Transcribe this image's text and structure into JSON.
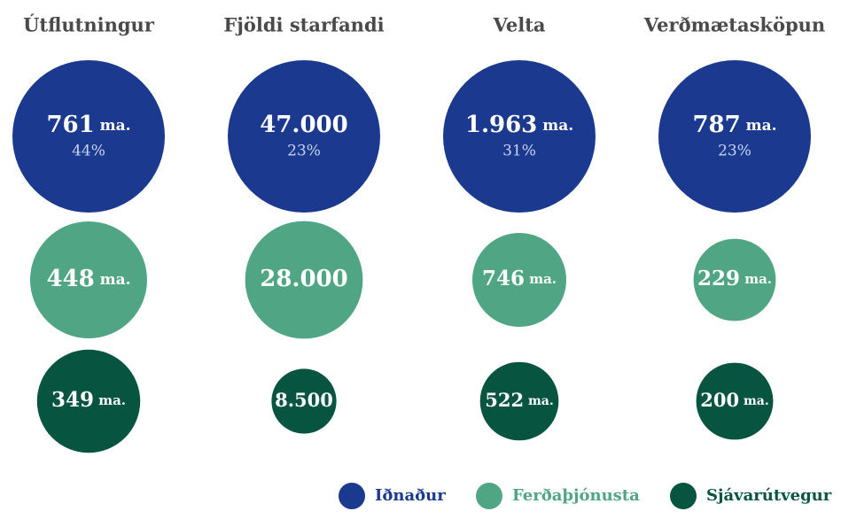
{
  "chart_data": {
    "type": "bubble",
    "categories": [
      "Útflutningur",
      "Fjöldi starfandi",
      "Velta",
      "Verðmætasköpun"
    ],
    "series": [
      {
        "name": "Iðnaður",
        "color": "#1b3a8f",
        "values": [
          761,
          47000,
          1963,
          787
        ],
        "labels": [
          "761",
          "47.000",
          "1.963",
          "787"
        ],
        "units": [
          "ma.",
          "",
          "ma.",
          "ma."
        ],
        "shares": [
          "44%",
          "23%",
          "31%",
          "23%"
        ]
      },
      {
        "name": "Ferðaþjónusta",
        "color": "#4fa584",
        "values": [
          448,
          28000,
          746,
          229
        ],
        "labels": [
          "448",
          "28.000",
          "746",
          "229"
        ],
        "units": [
          "ma.",
          "",
          "ma.",
          "ma."
        ]
      },
      {
        "name": "Sjávarútvegur",
        "color": "#075440",
        "values": [
          349,
          8500,
          522,
          200
        ],
        "labels": [
          "349",
          "8.500",
          "522",
          "200"
        ],
        "units": [
          "ma.",
          "",
          "ma.",
          "ma."
        ]
      }
    ],
    "legend_position": "bottom-right"
  }
}
